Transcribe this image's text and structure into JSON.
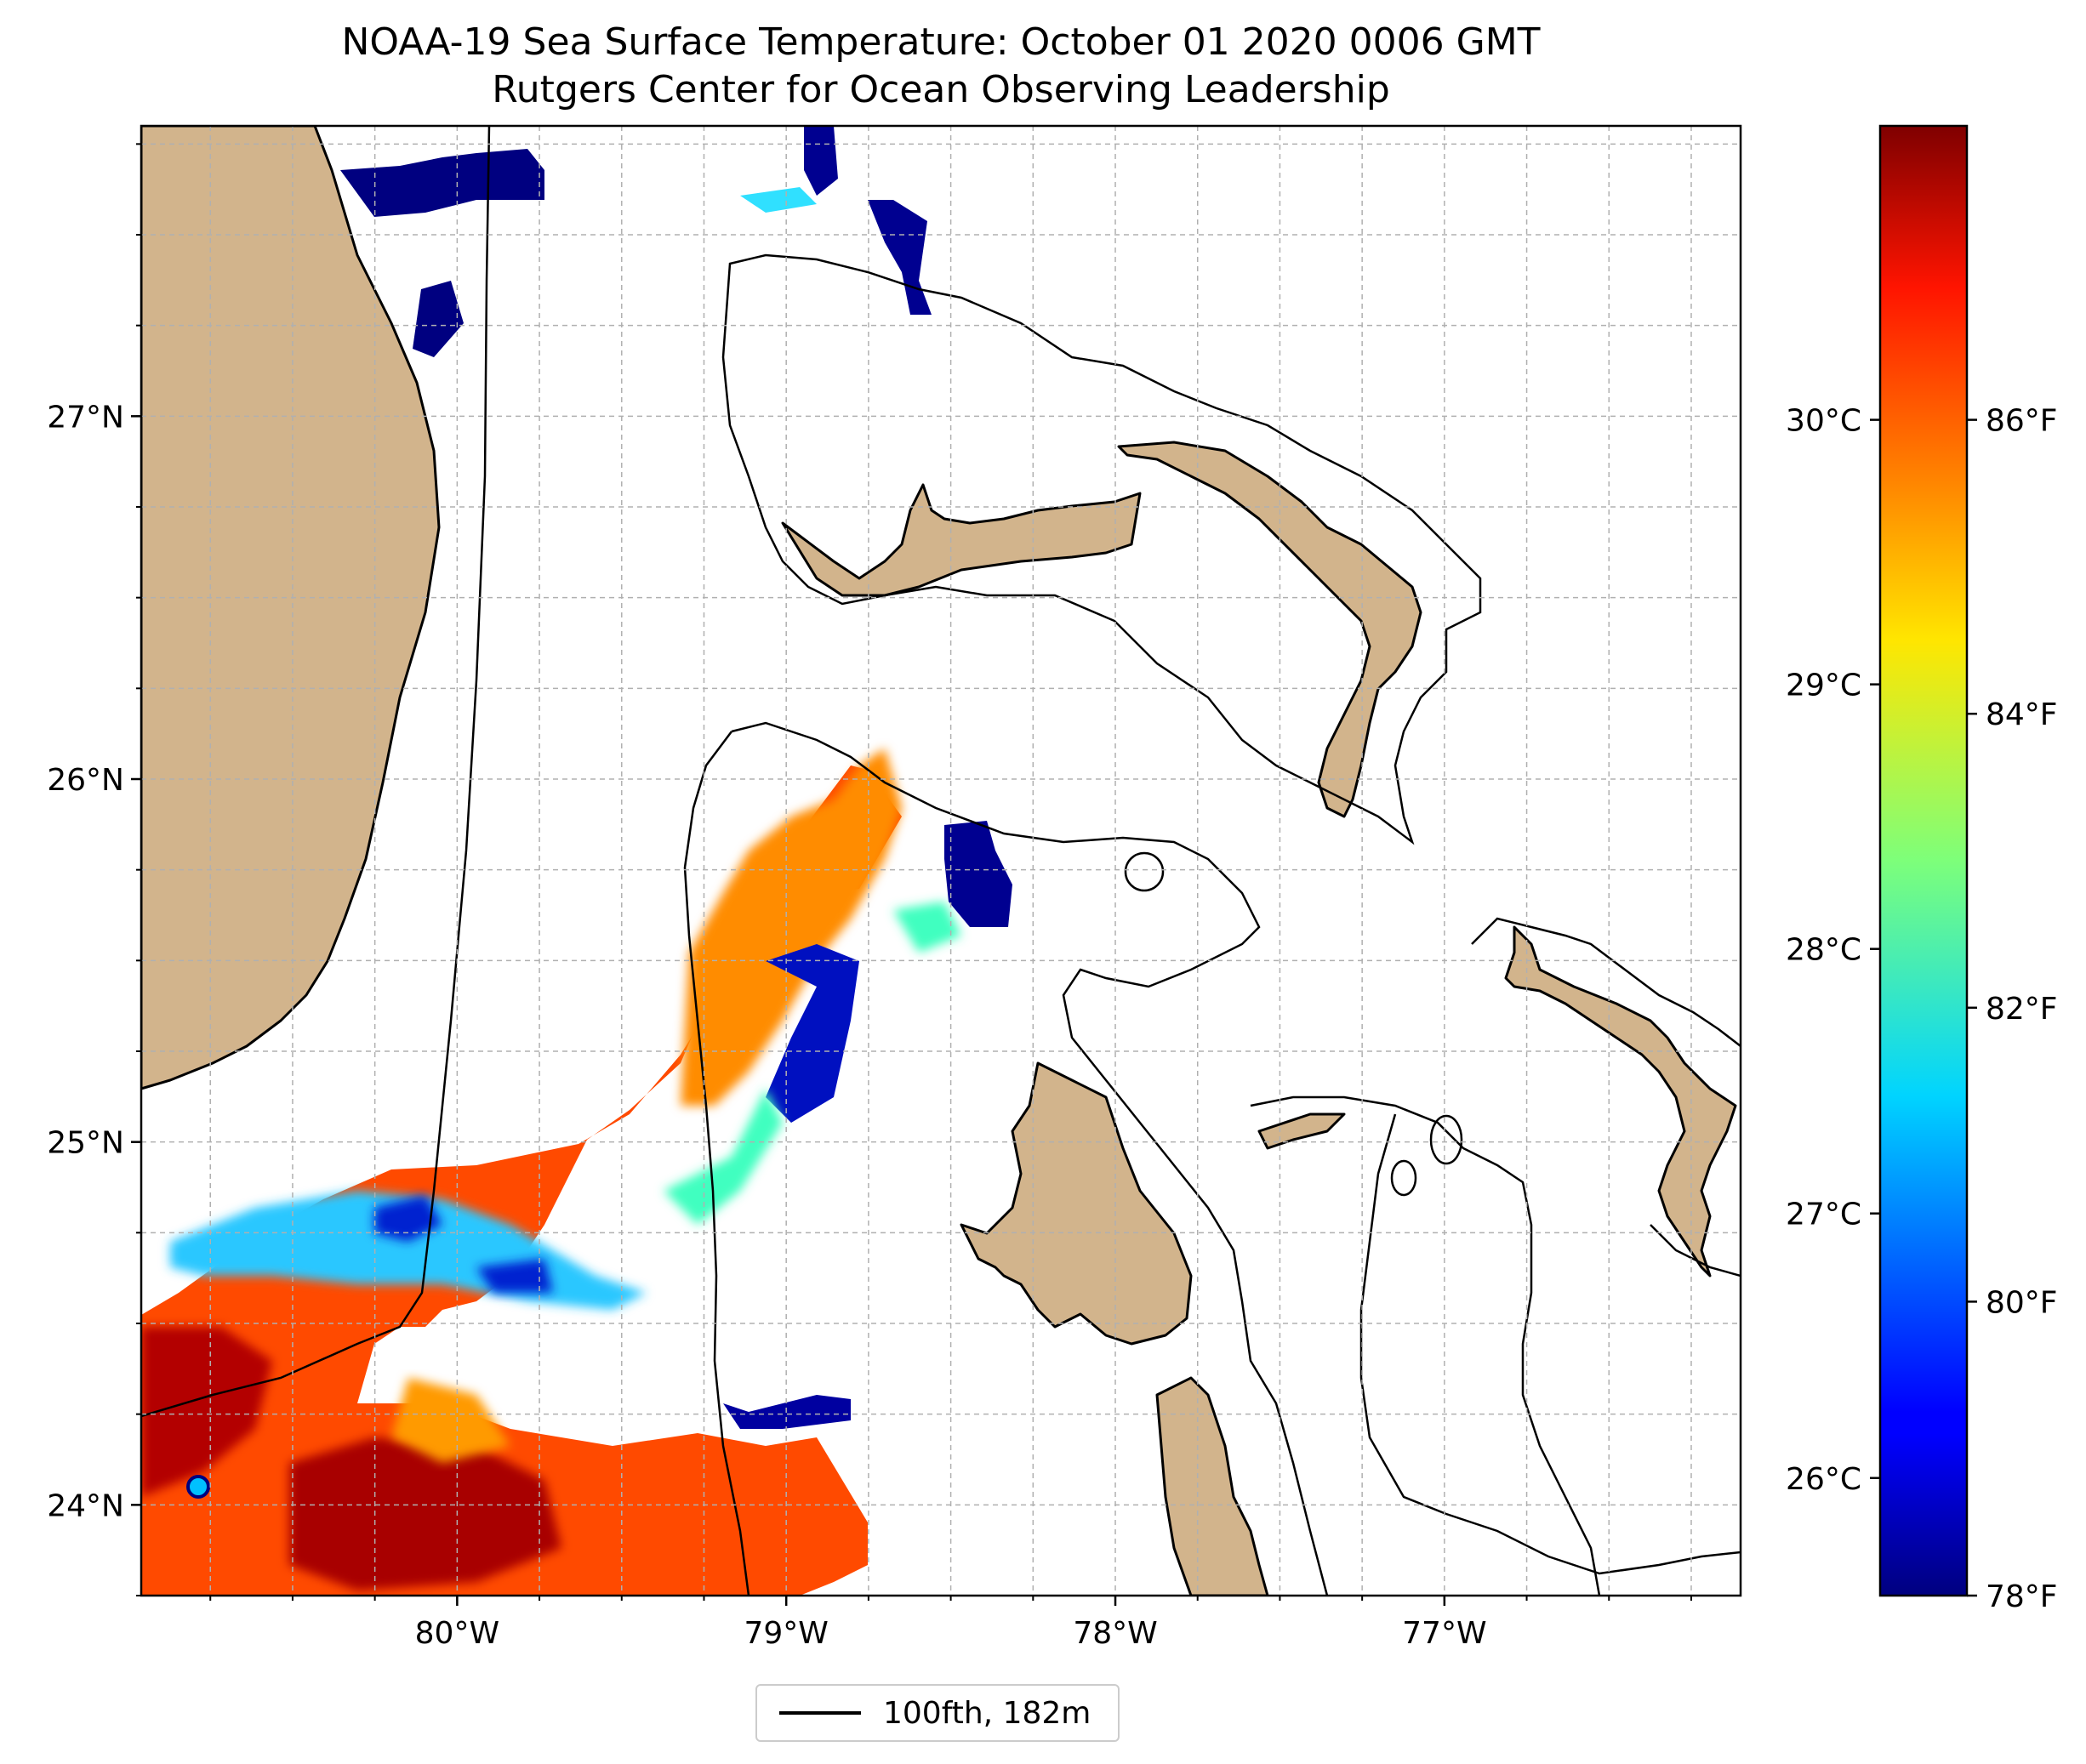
{
  "title": {
    "line1": "NOAA-19 Sea Surface Temperature: October 01 2020 0006 GMT",
    "line2": "Rutgers Center for Ocean Observing Leadership"
  },
  "map": {
    "lon_range": [
      -80.96,
      -76.1
    ],
    "lat_range": [
      23.75,
      27.8
    ],
    "lat_ticks": [
      {
        "value": 24,
        "label": "24°N"
      },
      {
        "value": 25,
        "label": "25°N"
      },
      {
        "value": 26,
        "label": "26°N"
      },
      {
        "value": 27,
        "label": "27°N"
      }
    ],
    "lon_ticks": [
      {
        "value": -80,
        "label": "80°W"
      },
      {
        "value": -79,
        "label": "79°W"
      },
      {
        "value": -78,
        "label": "78°W"
      },
      {
        "value": -77,
        "label": "77°W"
      }
    ],
    "grid": true,
    "land_color": "#d2b48c",
    "missing_data_color": "#ffffff"
  },
  "colorbar": {
    "colormap": "jet",
    "celsius_ticks": [
      {
        "value": 26,
        "label": "26°C"
      },
      {
        "value": 27,
        "label": "27°C"
      },
      {
        "value": 28,
        "label": "28°C"
      },
      {
        "value": 29,
        "label": "29°C"
      },
      {
        "value": 30,
        "label": "30°C"
      }
    ],
    "fahrenheit_ticks": [
      {
        "value": 78,
        "label": "78°F"
      },
      {
        "value": 80,
        "label": "80°F"
      },
      {
        "value": 82,
        "label": "82°F"
      },
      {
        "value": 84,
        "label": "84°F"
      },
      {
        "value": 86,
        "label": "86°F"
      }
    ],
    "range_f": [
      78,
      88
    ]
  },
  "legend": {
    "label": "100fth, 182m",
    "line_color": "#000000"
  }
}
